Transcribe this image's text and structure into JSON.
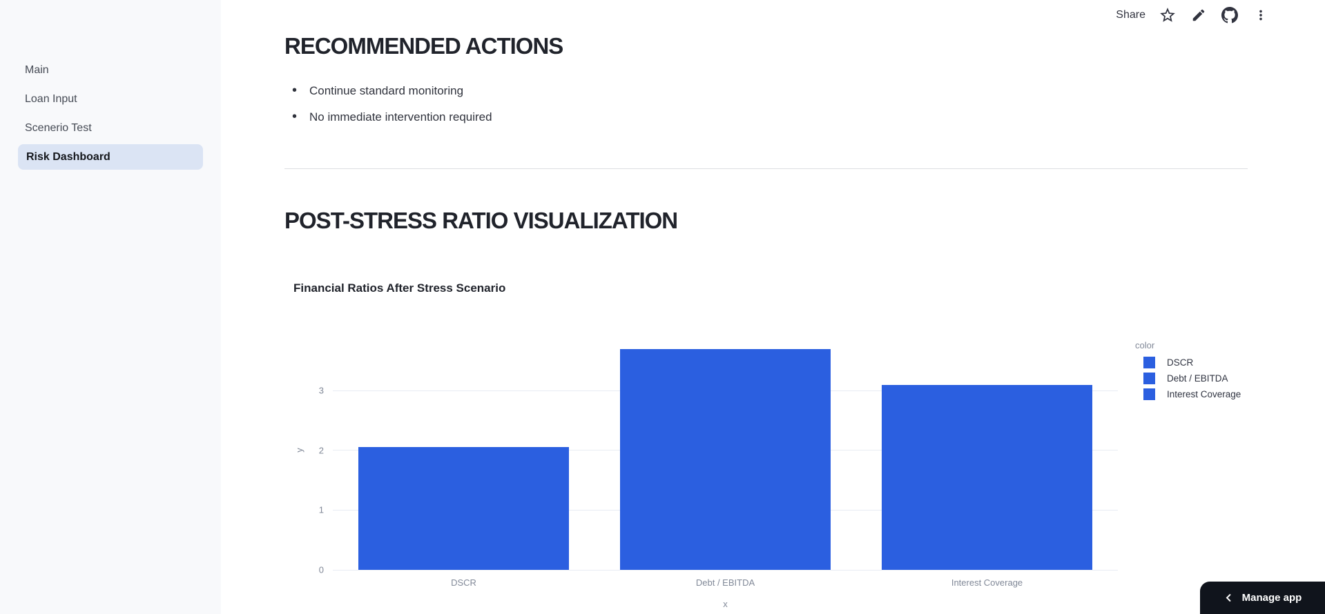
{
  "sidebar": {
    "items": [
      {
        "label": "Main",
        "active": false
      },
      {
        "label": "Loan Input",
        "active": false
      },
      {
        "label": "Scenerio Test",
        "active": false
      },
      {
        "label": "Risk Dashboard",
        "active": true
      }
    ]
  },
  "toolbar": {
    "share_label": "Share",
    "icons": [
      "star-icon",
      "edit-icon",
      "github-icon",
      "overflow-menu-icon"
    ]
  },
  "main": {
    "section1_title": "RECOMMENDED ACTIONS",
    "bullets": [
      "Continue standard monitoring",
      "No immediate intervention required"
    ],
    "section2_title": "POST-STRESS RATIO VISUALIZATION"
  },
  "chart_data": {
    "type": "bar",
    "title": "Financial Ratios After Stress Scenario",
    "categories": [
      "DSCR",
      "Debt / EBITDA",
      "Interest Coverage"
    ],
    "values": [
      2.05,
      3.7,
      3.1
    ],
    "xlabel": "x",
    "ylabel": "y",
    "yticks": [
      0,
      1,
      2,
      3
    ],
    "ylim": [
      0,
      4.03
    ],
    "grid": true,
    "bar_color": "#2b5fe0",
    "legend_title": "color",
    "legend_position": "right",
    "legend_items": [
      "DSCR",
      "Debt / EBITDA",
      "Interest Coverage"
    ]
  },
  "manage_app": {
    "label": "Manage app"
  },
  "colors": {
    "bar_blue": "#2b5fe0",
    "active_nav_bg": "#dbe4f4",
    "sidebar_bg": "#f8f9fb",
    "manage_app_bg": "#10141c"
  }
}
